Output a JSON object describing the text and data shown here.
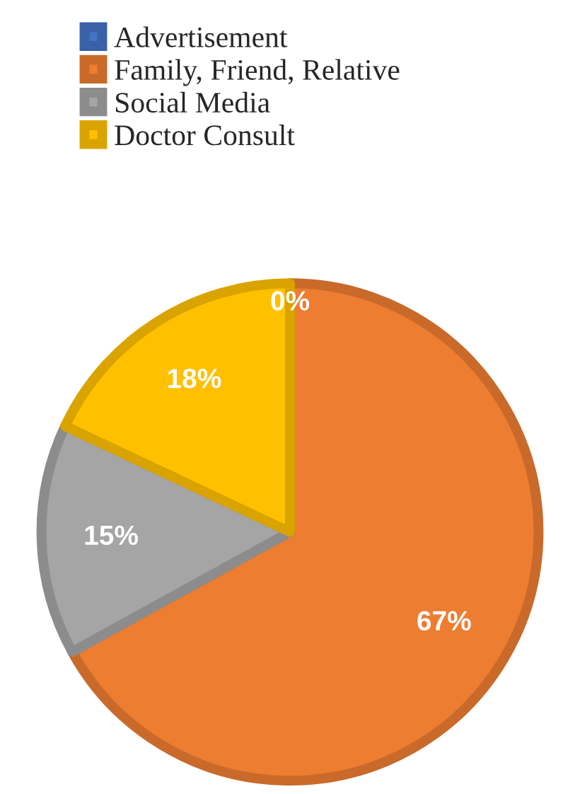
{
  "chart_data": {
    "type": "pie",
    "categories": [
      "Advertisement",
      "Family, Friend, Relative",
      "Social Media",
      "Doctor Consult"
    ],
    "values": [
      0,
      67,
      15,
      18
    ],
    "colors": [
      "#4472c4",
      "#ed7d31",
      "#a5a5a5",
      "#ffc000"
    ],
    "value_labels": [
      "0%",
      "67%",
      "15%",
      "18%"
    ],
    "legend": "top left"
  }
}
